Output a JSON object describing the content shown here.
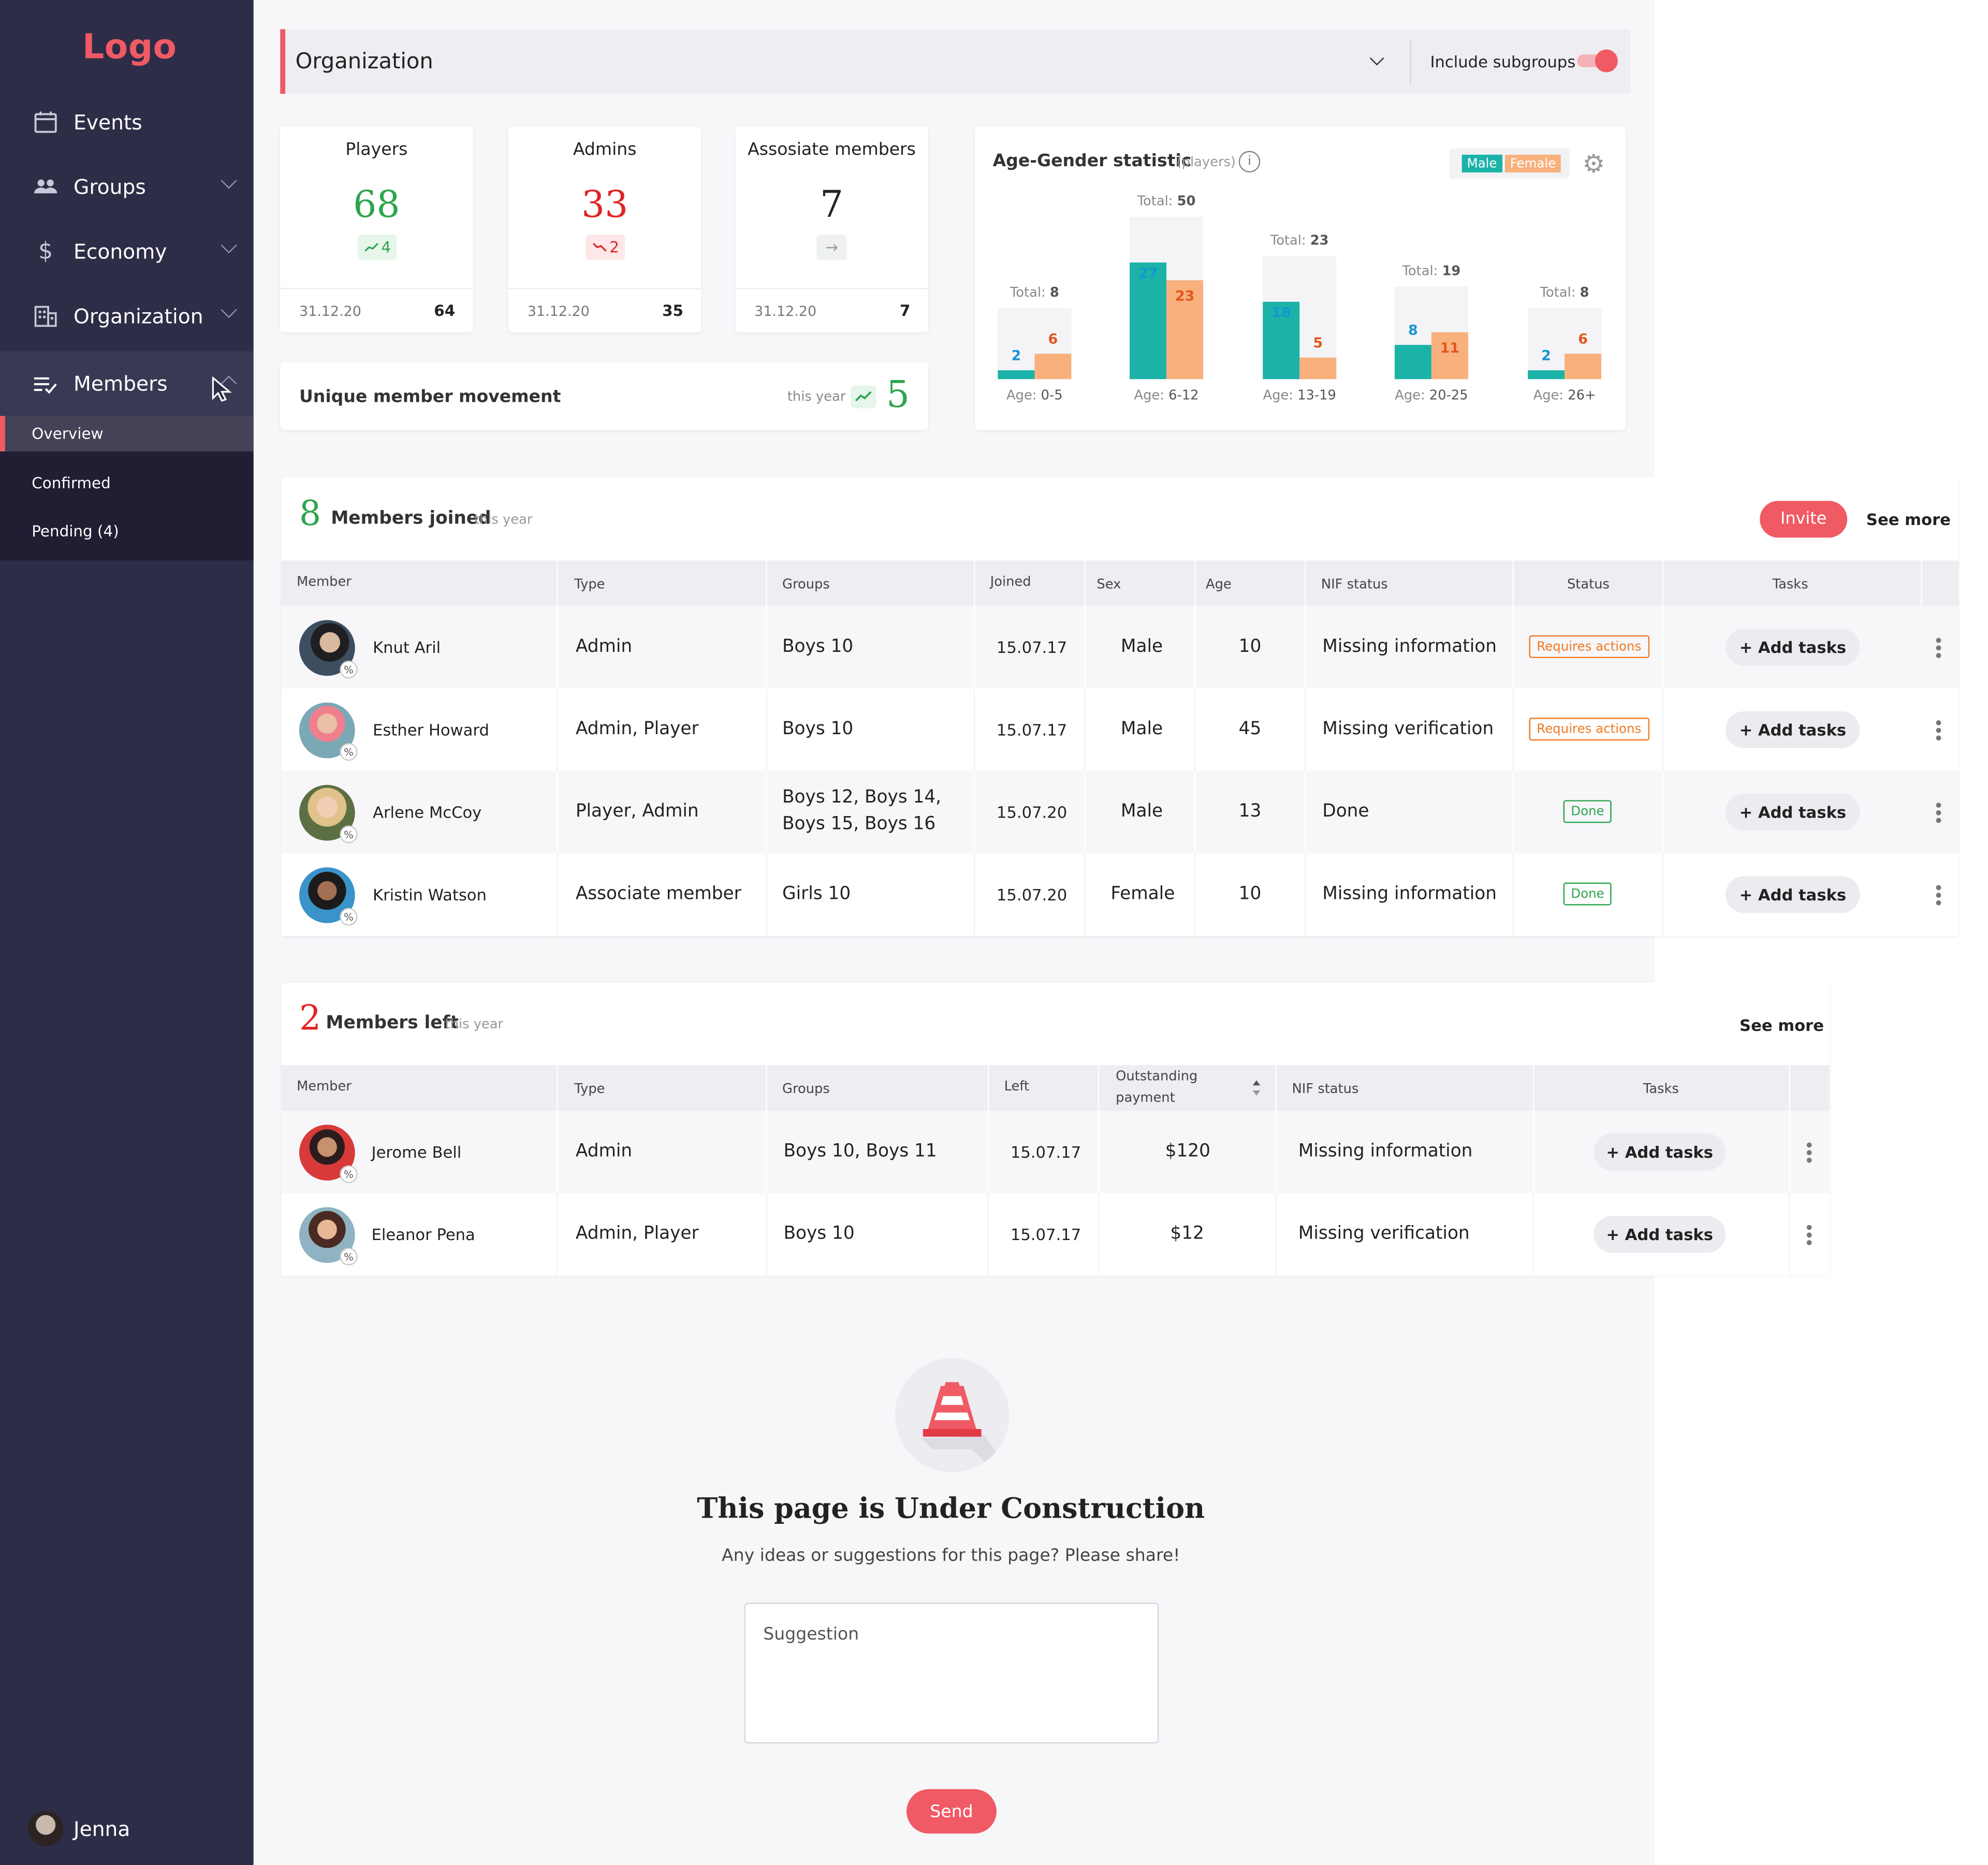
{
  "sidebar": {
    "logo": "Logo",
    "nav": [
      {
        "label": "Events",
        "icon": "calendar-icon"
      },
      {
        "label": "Groups",
        "icon": "people-icon"
      },
      {
        "label": "Economy",
        "icon": "dollar-icon"
      },
      {
        "label": "Organization",
        "icon": "building-icon"
      },
      {
        "label": "Members",
        "icon": "members-icon"
      }
    ],
    "subnav": [
      "Overview",
      "Confirmed",
      "Pending (4)"
    ],
    "user": "Jenna"
  },
  "orgbar": {
    "title": "Organization",
    "include_label": "Include subgroups",
    "include_on": true
  },
  "stats": [
    {
      "title": "Players",
      "value": "68",
      "delta": "4",
      "trend": "up",
      "date": "31.12.20",
      "prev": "64",
      "color": "#2ea44f"
    },
    {
      "title": "Admins",
      "value": "33",
      "delta": "2",
      "trend": "down",
      "date": "31.12.20",
      "prev": "35",
      "color": "#e02424"
    },
    {
      "title": "Assosiate members",
      "value": "7",
      "delta": "→",
      "trend": "flat",
      "date": "31.12.20",
      "prev": "7",
      "color": "#222222"
    }
  ],
  "movement": {
    "label": "Unique member movement",
    "period": "this year",
    "value": "5"
  },
  "age_chart": {
    "title": "Age-Gender statistic",
    "subtitle": "(players)",
    "legend": [
      "Male",
      "Female"
    ],
    "colors": {
      "male": "#1bb3a7",
      "female": "#f8b07c"
    },
    "total_prefix": "Total:",
    "age_prefix": "Age:"
  },
  "chart_data": {
    "type": "bar",
    "title": "Age-Gender statistic",
    "subtitle": "(players)",
    "categories": [
      "0-5",
      "6-12",
      "13-19",
      "20-25",
      "26+"
    ],
    "series": [
      {
        "name": "Male",
        "values": [
          2,
          27,
          18,
          8,
          2
        ]
      },
      {
        "name": "Female",
        "values": [
          6,
          23,
          5,
          11,
          6
        ]
      }
    ],
    "totals": [
      8,
      50,
      23,
      19,
      8
    ],
    "ylim": [
      0,
      50
    ]
  },
  "joined": {
    "count": "8",
    "label": "Members joined",
    "period": "this year",
    "invite": "Invite",
    "see_more": "See more",
    "columns": [
      "Member",
      "Type",
      "Groups",
      "Joined",
      "Sex",
      "Age",
      "NIF status",
      "Status",
      "Tasks"
    ],
    "rows": [
      {
        "name": "Knut Aril",
        "type": "Admin",
        "groups": [
          "Boys 10"
        ],
        "joined": "15.07.17",
        "sex": "Male",
        "age": "10",
        "nif": "Missing information",
        "status": "Requires actions",
        "status_kind": "req",
        "task": "+ Add tasks"
      },
      {
        "name": "Esther Howard",
        "type": "Admin, Player",
        "groups": [
          "Boys 10"
        ],
        "joined": "15.07.17",
        "sex": "Male",
        "age": "45",
        "nif": "Missing verification",
        "status": "Requires actions",
        "status_kind": "req",
        "task": "+ Add tasks"
      },
      {
        "name": "Arlene McCoy",
        "type": "Player, Admin",
        "groups": [
          "Boys 12, Boys 14,",
          "Boys 15, Boys 16"
        ],
        "joined": "15.07.20",
        "sex": "Male",
        "age": "13",
        "nif": "Done",
        "status": "Done",
        "status_kind": "done",
        "task": "+ Add tasks"
      },
      {
        "name": "Kristin Watson",
        "type": "Associate member",
        "groups": [
          "Girls 10"
        ],
        "joined": "15.07.20",
        "sex": "Female",
        "age": "10",
        "nif": "Missing information",
        "status": "Done",
        "status_kind": "done",
        "task": "+ Add tasks"
      }
    ]
  },
  "left": {
    "count": "2",
    "label": "Members left",
    "period": "this year",
    "see_more": "See more",
    "columns": [
      "Member",
      "Type",
      "Groups",
      "Left",
      "Outstanding payment",
      "NIF status",
      "Tasks"
    ],
    "outstanding_lines": [
      "Outstanding",
      "payment"
    ],
    "rows": [
      {
        "name": "Jerome Bell",
        "type": "Admin",
        "groups": "Boys 10, Boys 11",
        "left": "15.07.17",
        "payment": "$120",
        "nif": "Missing information",
        "task": "+ Add tasks"
      },
      {
        "name": "Eleanor Pena",
        "type": "Admin, Player",
        "groups": "Boys 10",
        "left": "15.07.17",
        "payment": "$12",
        "nif": "Missing verification",
        "task": "+ Add tasks"
      }
    ]
  },
  "construction": {
    "title": "This page is Under Construction",
    "subtitle": "Any ideas or suggestions for this page? Please share!",
    "placeholder": "Suggestion",
    "send": "Send"
  }
}
